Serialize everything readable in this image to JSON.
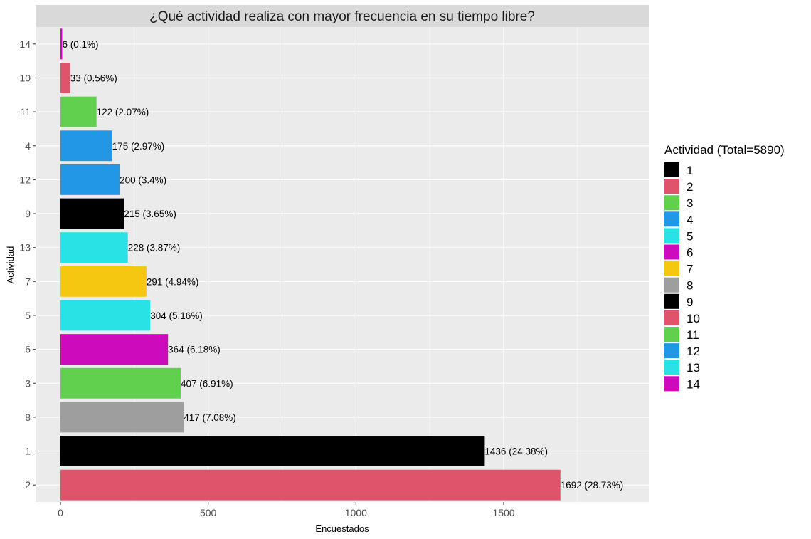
{
  "chart_data": {
    "type": "bar",
    "orientation": "horizontal",
    "title": "¿Qué actividad realiza con mayor frecuencia en su tiempo libre?",
    "xlabel": "Encuestados",
    "ylabel": "Actividad",
    "xlim": [
      0,
      1880
    ],
    "x_ticks": [
      0,
      500,
      1000,
      1500
    ],
    "grid": true,
    "legend": {
      "title": "Actividad (Total=5890)",
      "position": "right",
      "items": [
        {
          "label": "1",
          "color": "#000000"
        },
        {
          "label": "2",
          "color": "#DF536B"
        },
        {
          "label": "3",
          "color": "#61D04F"
        },
        {
          "label": "4",
          "color": "#2297E6"
        },
        {
          "label": "5",
          "color": "#28E2E5"
        },
        {
          "label": "6",
          "color": "#CD0BBC"
        },
        {
          "label": "7",
          "color": "#F5C710"
        },
        {
          "label": "8",
          "color": "#9E9E9E"
        },
        {
          "label": "9",
          "color": "#000000"
        },
        {
          "label": "10",
          "color": "#DF536B"
        },
        {
          "label": "11",
          "color": "#61D04F"
        },
        {
          "label": "12",
          "color": "#2297E6"
        },
        {
          "label": "13",
          "color": "#28E2E5"
        },
        {
          "label": "14",
          "color": "#CD0BBC"
        }
      ]
    },
    "bars": [
      {
        "category": "14",
        "value": 6,
        "label": "6 (0.1%)",
        "color": "#CD0BBC"
      },
      {
        "category": "10",
        "value": 33,
        "label": "33 (0.56%)",
        "color": "#DF536B"
      },
      {
        "category": "11",
        "value": 122,
        "label": "122 (2.07%)",
        "color": "#61D04F"
      },
      {
        "category": "4",
        "value": 175,
        "label": "175 (2.97%)",
        "color": "#2297E6"
      },
      {
        "category": "12",
        "value": 200,
        "label": "200 (3.4%)",
        "color": "#2297E6"
      },
      {
        "category": "9",
        "value": 215,
        "label": "215 (3.65%)",
        "color": "#000000"
      },
      {
        "category": "13",
        "value": 228,
        "label": "228 (3.87%)",
        "color": "#28E2E5"
      },
      {
        "category": "7",
        "value": 291,
        "label": "291 (4.94%)",
        "color": "#F5C710"
      },
      {
        "category": "5",
        "value": 304,
        "label": "304 (5.16%)",
        "color": "#28E2E5"
      },
      {
        "category": "6",
        "value": 364,
        "label": "364 (6.18%)",
        "color": "#CD0BBC"
      },
      {
        "category": "3",
        "value": 407,
        "label": "407 (6.91%)",
        "color": "#61D04F"
      },
      {
        "category": "8",
        "value": 417,
        "label": "417 (7.08%)",
        "color": "#9E9E9E"
      },
      {
        "category": "1",
        "value": 1436,
        "label": "1436 (24.38%)",
        "color": "#000000"
      },
      {
        "category": "2",
        "value": 1692,
        "label": "1692 (28.73%)",
        "color": "#DF536B"
      }
    ]
  }
}
